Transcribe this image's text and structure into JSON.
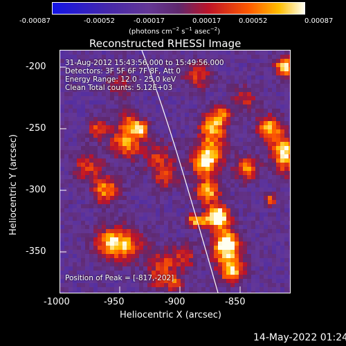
{
  "colorbar": {
    "ticks": [
      "-0.00087",
      "-0.00052",
      "-0.00017",
      "0.00017",
      "0.00052",
      "0.00087"
    ],
    "units_prefix": "(photons cm",
    "units_exp1": "−2",
    "units_mid": " s",
    "units_exp2": "−1",
    "units_mid2": " asec",
    "units_exp3": "−2",
    "units_suffix": ")",
    "range": [
      -0.00087,
      0.00087
    ]
  },
  "plot": {
    "title": "Reconstructed RHESSI Image",
    "annotations": {
      "time": "31-Aug-2012 15:43:56.000 to 15:49:56.000",
      "detectors": "Detectors: 3F 5F 6F 7F 8F, Att 0",
      "energy": "Energy Range: 12.0 - 25.0 keV",
      "clean": "Clean   Total counts: 5.12E+03",
      "peak": "Position of Peak = [-817,-202]"
    },
    "xlabel": "Heliocentric X (arcsec)",
    "ylabel": "Heliocentric Y (arcsec)",
    "xticks": [
      "-1000",
      "-950",
      "-900",
      "-850"
    ],
    "yticks": [
      "-200",
      "-250",
      "-300",
      "-350"
    ],
    "xlim": [
      -1001,
      -810
    ],
    "ylim": [
      -381,
      -186
    ]
  },
  "footer": {
    "timestamp": "14-May-2022 01:24"
  }
}
